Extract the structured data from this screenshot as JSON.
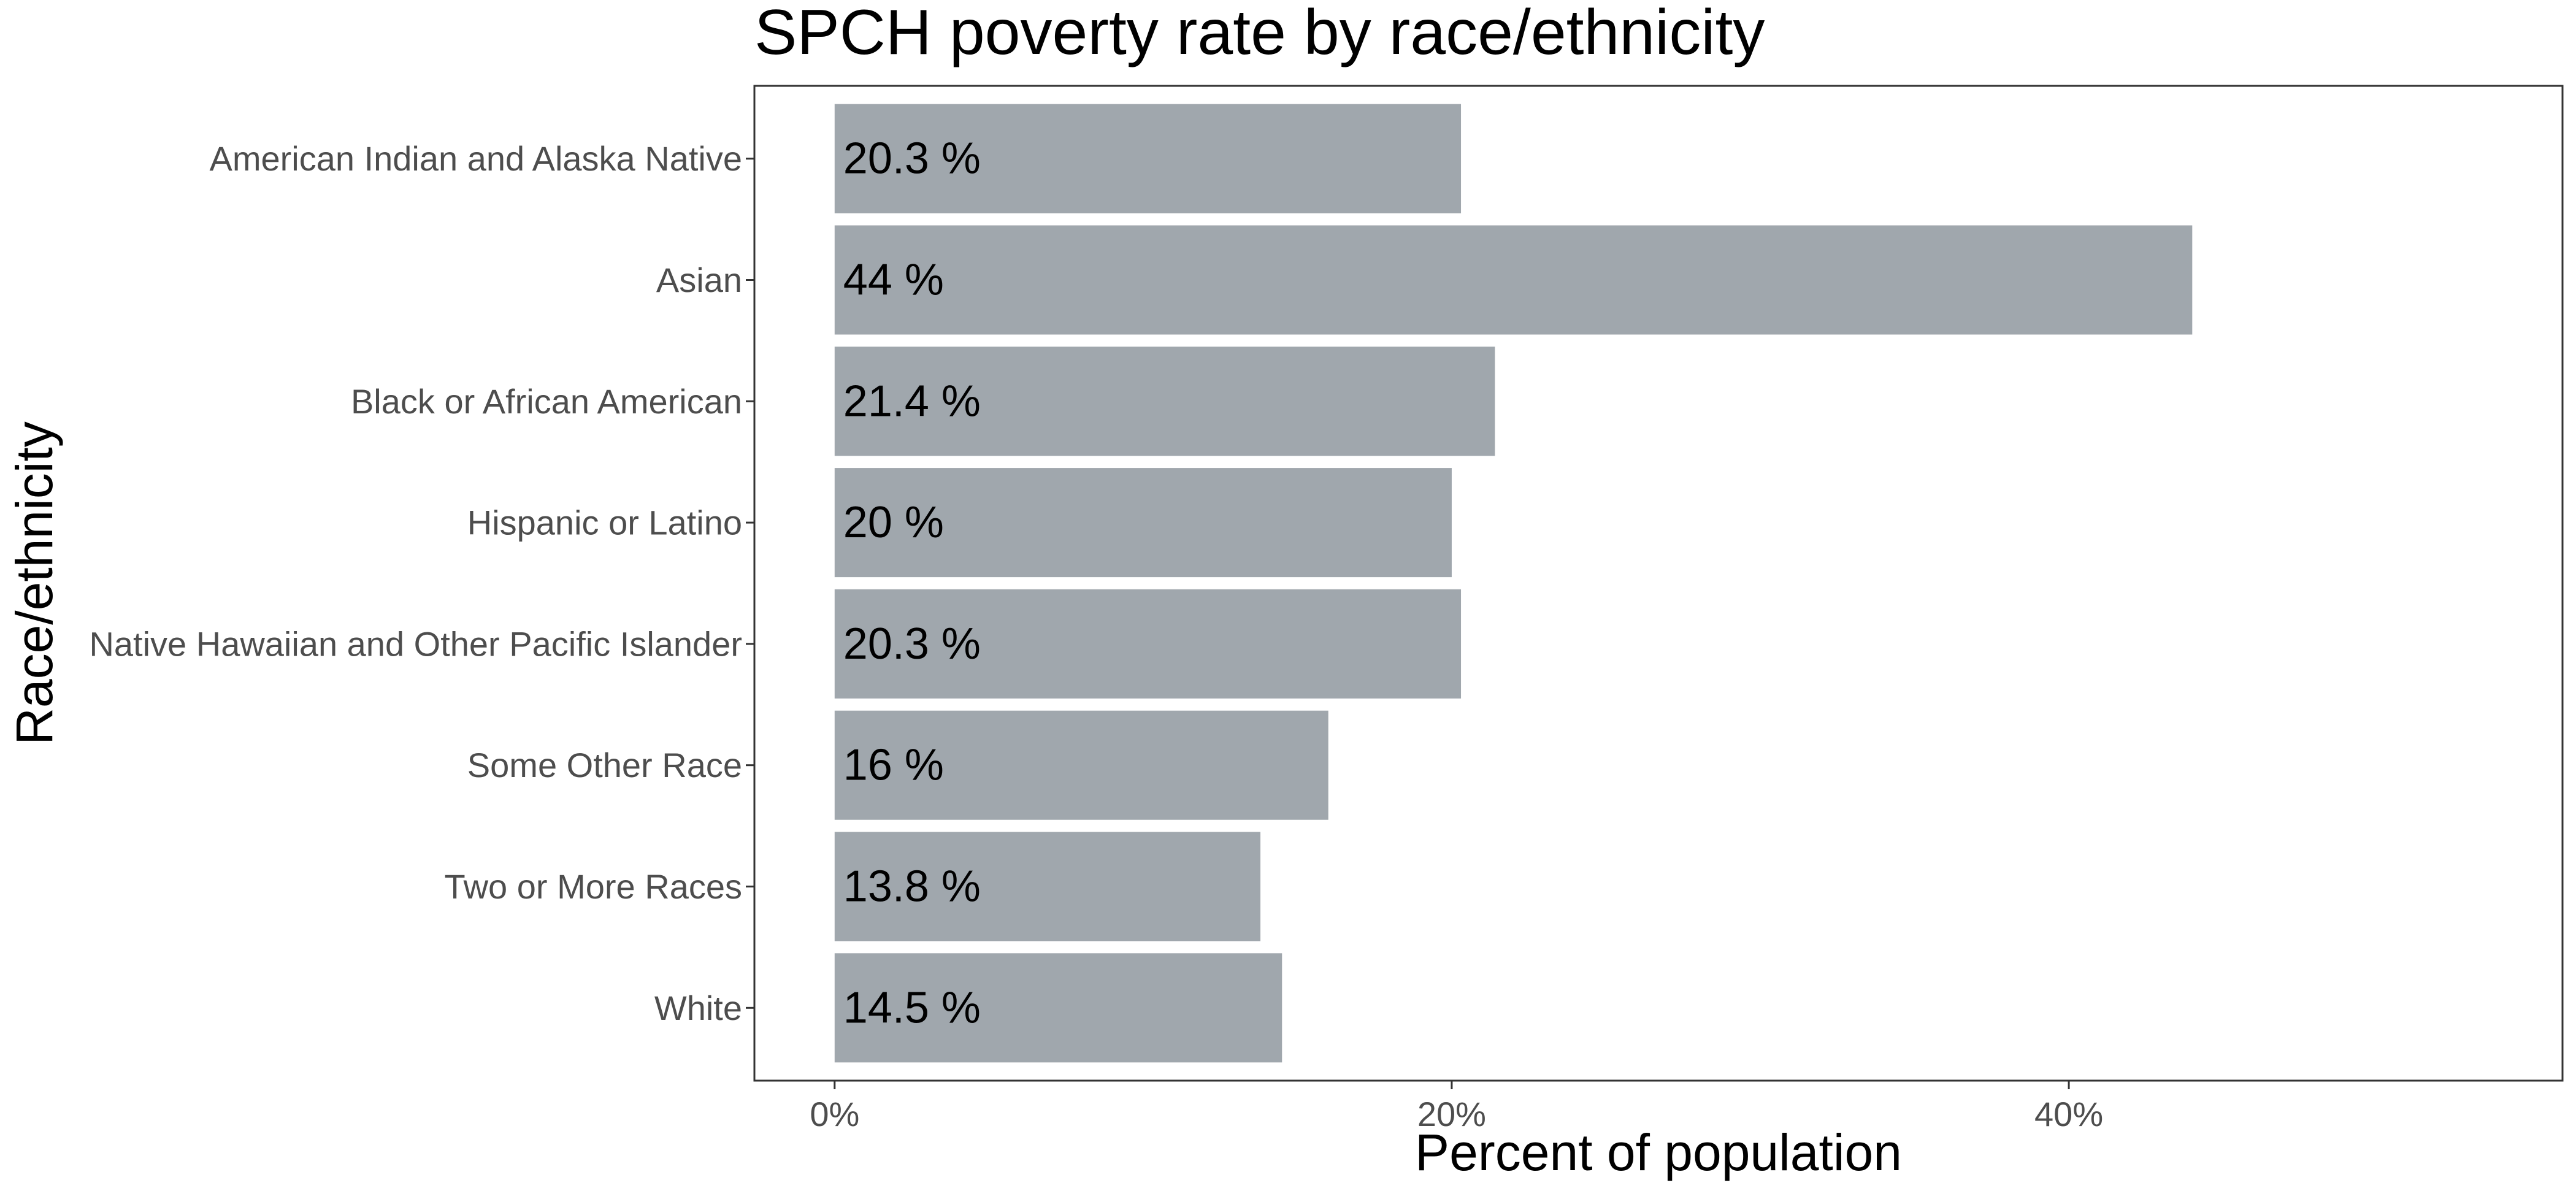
{
  "chart_data": {
    "type": "bar",
    "orientation": "horizontal",
    "title": "SPCH poverty rate by race/ethnicity",
    "xlabel": "Percent of population",
    "ylabel": "Race/ethnicity",
    "categories": [
      "American Indian and Alaska Native",
      "Asian",
      "Black or African American",
      "Hispanic or Latino",
      "Native Hawaiian and Other Pacific Islander",
      "Some Other Race",
      "Two or More Races",
      "White"
    ],
    "values": [
      20.3,
      44,
      21.4,
      20,
      20.3,
      16,
      13.8,
      14.5
    ],
    "data_labels": [
      "20.3 %",
      "44 %",
      "21.4 %",
      "20 %",
      "20.3 %",
      "16 %",
      "13.8 %",
      "14.5 %"
    ],
    "x_ticks": [
      0,
      20,
      40
    ],
    "x_tick_labels": [
      "0%",
      "20%",
      "40%"
    ],
    "xlim": [
      -2.6,
      56
    ],
    "grid": false,
    "legend": "none",
    "colors": {
      "bar": "#a0a7ad",
      "text": "#000000",
      "axis_text": "#4d4d4d",
      "panel_border": "#333333"
    }
  }
}
